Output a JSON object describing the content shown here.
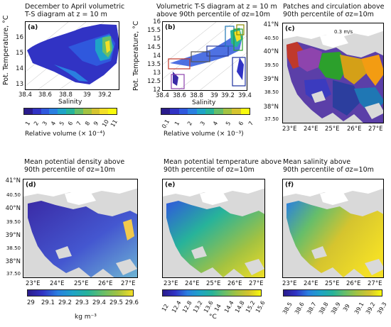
{
  "panels": {
    "a": {
      "label": "(a)",
      "title": "December to April volumetric\nT-S diagram at z = 10 m",
      "ylabel": "Pot. Temperature, °C",
      "xlabel": "Salinity",
      "xticks": [
        "38.4",
        "38.6",
        "38.8",
        "39",
        "39.2"
      ],
      "yticks": [
        "16",
        "15",
        "14",
        "13"
      ],
      "cbar_ticks": [
        "1",
        "2",
        "3",
        "4",
        "5",
        "6",
        "7",
        "8",
        "9",
        "10",
        "11"
      ],
      "cbar_label": "Relative volume (× 10⁻⁴)"
    },
    "b": {
      "label": "(b)",
      "title": "Volumetric T-S diagram at z = 10 m\nabove 90th percentile of σz=10m",
      "xlabel": "Salinity",
      "xticks": [
        "38.4",
        "38.6",
        "38.8",
        "39",
        "39.2",
        "39.4"
      ],
      "yticks": [
        "16",
        "15.5",
        "15",
        "14.5",
        "14",
        "13.5",
        "13",
        "12.5",
        "12"
      ],
      "cbar_ticks": [
        "0.1",
        "1",
        "2",
        "3",
        "4",
        "5",
        "6",
        "7"
      ],
      "cbar_label": "Relative volume (× 10⁻³)"
    },
    "c": {
      "label": "(c)",
      "title": "Patches and circulation above\n90th percentile of σz=10m",
      "scale_text": "0.3 m/s"
    },
    "d": {
      "label": "(d)",
      "title": "Mean potential density above\n90th percentile of σz=10m",
      "cbar_ticks": [
        "29",
        "29.1",
        "29.2",
        "29.3",
        "29.4",
        "29.5",
        "29.6"
      ],
      "unit": "kg m⁻³"
    },
    "e": {
      "label": "(e)",
      "title": "Mean potential temperature above\n90th percentile of σz=10m",
      "cbar_ticks": [
        "12",
        "12.4",
        "12.8",
        "13.2",
        "13.6",
        "14",
        "14.4",
        "14.8",
        "15.2",
        "15.6"
      ],
      "unit": "°C"
    },
    "f": {
      "label": "(f)",
      "title": "Mean salinity above\n90th percentile of σz=10m",
      "cbar_ticks": [
        "38.5",
        "38.6",
        "38.7",
        "38.8",
        "38.9",
        "39",
        "39.1",
        "39.2",
        "39.3"
      ],
      "unit": ""
    }
  },
  "map_axes": {
    "lat_ticks": [
      "41°N",
      "40.50",
      "40°N",
      "39.50",
      "39°N",
      "38.50",
      "38°N",
      "37.50"
    ],
    "lon_ticks": [
      "23°E",
      "24°E",
      "25°E",
      "26°E",
      "27°E"
    ]
  },
  "colors": {
    "ts_map": [
      "#2a1b8c",
      "#3133c4",
      "#2f58dd",
      "#2a7fe0",
      "#1fa3c7",
      "#27b39a",
      "#66be6a",
      "#a3c241",
      "#d5c42f",
      "#f3df26",
      "#f8fa0d"
    ],
    "sea_lo": "#3a2ba6",
    "sea_hi": "#f5e02a",
    "land": "#d9d9d9",
    "coast": "#ffffff"
  },
  "chart_data": [
    {
      "type": "heatmap",
      "panel": "a",
      "title": "December to April volumetric T-S diagram at z = 10 m",
      "xlabel": "Salinity",
      "ylabel": "Pot. Temperature, °C",
      "xlim": [
        38.4,
        39.3
      ],
      "ylim": [
        13,
        16.5
      ],
      "colorbar": {
        "label": "Relative volume (× 10⁻⁴)",
        "range": [
          1,
          11
        ]
      }
    },
    {
      "type": "heatmap",
      "panel": "b",
      "title": "Volumetric T-S diagram at z = 10 m above 90th percentile of σz=10m",
      "xlabel": "Salinity",
      "xlim": [
        38.4,
        39.4
      ],
      "ylim": [
        12,
        16
      ],
      "colorbar": {
        "label": "Relative volume (× 10⁻³)",
        "range": [
          0.1,
          7
        ]
      }
    },
    {
      "type": "heatmap",
      "panel": "d",
      "title": "Mean potential density above 90th percentile of σz=10m",
      "colorbar": {
        "label": "kg m⁻³",
        "range": [
          29,
          29.6
        ]
      }
    },
    {
      "type": "heatmap",
      "panel": "e",
      "title": "Mean potential temperature above 90th percentile of σz=10m",
      "colorbar": {
        "label": "°C",
        "range": [
          12,
          15.6
        ]
      }
    },
    {
      "type": "heatmap",
      "panel": "f",
      "title": "Mean salinity above 90th percentile of σz=10m",
      "colorbar": {
        "range": [
          38.5,
          39.3
        ]
      }
    }
  ]
}
